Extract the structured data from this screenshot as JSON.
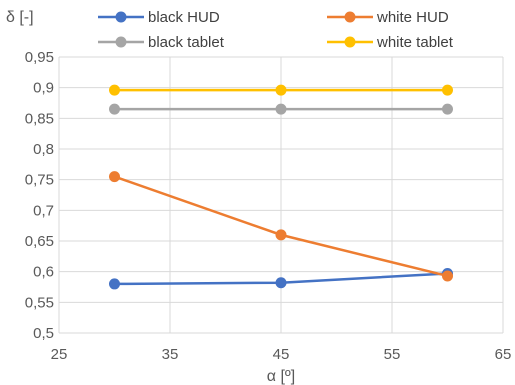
{
  "chart_data": {
    "type": "line",
    "ylabel": "δ [-]",
    "xlabel": "α [º]",
    "xlim": [
      25,
      65
    ],
    "ylim": [
      0.5,
      0.95
    ],
    "x_ticks": [
      "25",
      "35",
      "45",
      "55",
      "65"
    ],
    "y_ticks": [
      "0,5",
      "0,55",
      "0,6",
      "0,65",
      "0,7",
      "0,75",
      "0,8",
      "0,85",
      "0,9",
      "0,95"
    ],
    "grid": true,
    "legend_position": "top",
    "x": [
      30,
      45,
      60
    ],
    "series": [
      {
        "name": "black HUD",
        "color": "#4472C4",
        "values": [
          0.58,
          0.582,
          0.597
        ]
      },
      {
        "name": "white HUD",
        "color": "#ED7D31",
        "values": [
          0.755,
          0.66,
          0.593
        ]
      },
      {
        "name": "black tablet",
        "color": "#A5A5A5",
        "values": [
          0.865,
          0.865,
          0.865
        ]
      },
      {
        "name": "white tablet",
        "color": "#FFC000",
        "values": [
          0.896,
          0.896,
          0.896
        ]
      }
    ]
  }
}
